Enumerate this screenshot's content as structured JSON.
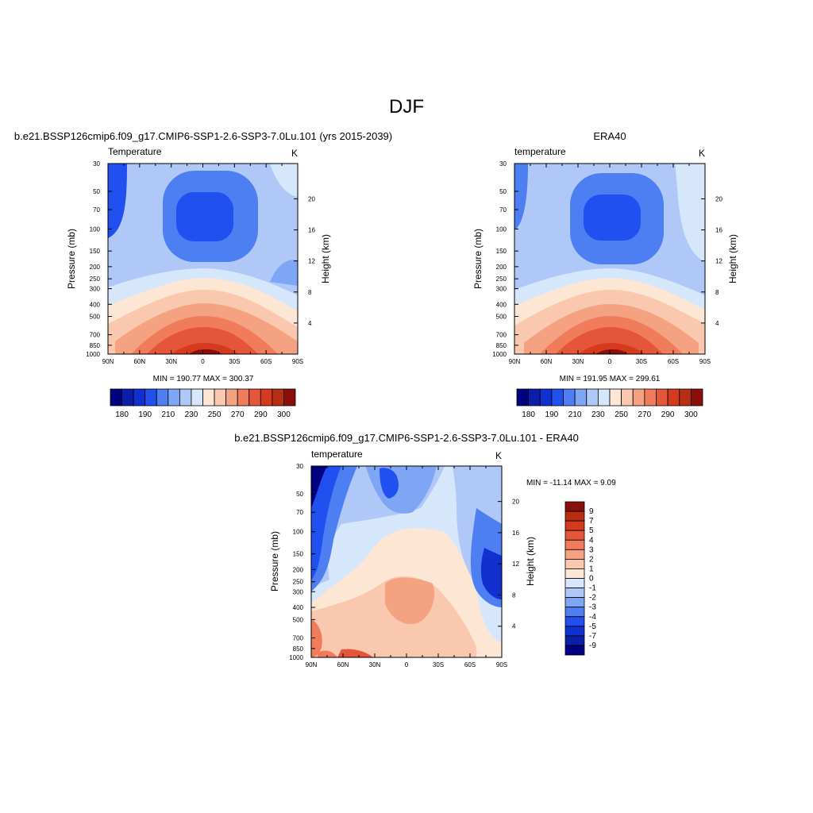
{
  "figure": {
    "title": "DJF"
  },
  "colors": {
    "temp_scale": [
      "#000080",
      "#0a1eaa",
      "#1030d0",
      "#2050f0",
      "#4d7ef2",
      "#7fa6f5",
      "#afc8f8",
      "#d6e6fb",
      "#fde6d4",
      "#f9c8ae",
      "#f5a282",
      "#f07c5c",
      "#e5553a",
      "#d53a1c",
      "#b82e12",
      "#8a0f0a"
    ],
    "diff_scale": [
      "#000080",
      "#0a1eaa",
      "#1030d0",
      "#2050f0",
      "#4d7ef2",
      "#7fa6f5",
      "#afc8f8",
      "#d6e6fb",
      "#fde6d4",
      "#f9c8ae",
      "#f5a282",
      "#f07c5c",
      "#e5553a",
      "#d53a1c",
      "#b82e12",
      "#8a0f0a"
    ]
  },
  "chart_data": [
    {
      "type": "heatmap",
      "title": "b.e21.BSSP126cmip6.f09_g17.CMIP6-SSP1-2.6-SSP3-7.0Lu.101 (yrs 2015-2039)",
      "left_label": "Temperature",
      "right_label": "K",
      "ylabel": "Pressure (mb)",
      "y2label": "Height (km)",
      "xticks": [
        "90N",
        "60N",
        "30N",
        "0",
        "30S",
        "60S",
        "90S"
      ],
      "yticks": [
        "30",
        "50",
        "70",
        "100",
        "150",
        "200",
        "250",
        "300",
        "400",
        "500",
        "700",
        "850",
        "1000"
      ],
      "y2ticks": [
        "20",
        "16",
        "12",
        "8",
        "4"
      ],
      "stats": "MIN = 190.77  MAX = 300.37",
      "colorbar_labels": [
        "180",
        "190",
        "210",
        "230",
        "250",
        "270",
        "290",
        "300"
      ],
      "colorbar_orientation": "horizontal",
      "min": 190.77,
      "max": 300.37
    },
    {
      "type": "heatmap",
      "title": "ERA40",
      "left_label": "temperature",
      "right_label": "K",
      "ylabel": "Pressure (mb)",
      "y2label": "Height (km)",
      "xticks": [
        "90N",
        "60N",
        "30N",
        "0",
        "30S",
        "60S",
        "90S"
      ],
      "yticks": [
        "30",
        "50",
        "70",
        "100",
        "150",
        "200",
        "250",
        "300",
        "400",
        "500",
        "700",
        "850",
        "1000"
      ],
      "y2ticks": [
        "20",
        "16",
        "12",
        "8",
        "4"
      ],
      "stats": "MIN = 191.95  MAX = 299.61",
      "colorbar_labels": [
        "180",
        "190",
        "210",
        "230",
        "250",
        "270",
        "290",
        "300"
      ],
      "colorbar_orientation": "horizontal",
      "min": 191.95,
      "max": 299.61
    },
    {
      "type": "heatmap",
      "title": "b.e21.BSSP126cmip6.f09_g17.CMIP6-SSP1-2.6-SSP3-7.0Lu.101 - ERA40",
      "left_label": "temperature",
      "right_label": "K",
      "ylabel": "Pressure (mb)",
      "y2label": "Height (km)",
      "xticks": [
        "90N",
        "60N",
        "30N",
        "0",
        "30S",
        "60S",
        "90S"
      ],
      "yticks": [
        "30",
        "50",
        "70",
        "100",
        "150",
        "200",
        "250",
        "300",
        "400",
        "500",
        "700",
        "850",
        "1000"
      ],
      "y2ticks": [
        "20",
        "16",
        "12",
        "8",
        "4"
      ],
      "stats": "MIN = -11.14  MAX =   9.09",
      "colorbar_labels": [
        "9",
        "7",
        "5",
        "4",
        "3",
        "2",
        "1",
        "0",
        "-1",
        "-2",
        "-3",
        "-4",
        "-5",
        "-7",
        "-9"
      ],
      "colorbar_orientation": "vertical",
      "min": -11.14,
      "max": 9.09
    }
  ]
}
